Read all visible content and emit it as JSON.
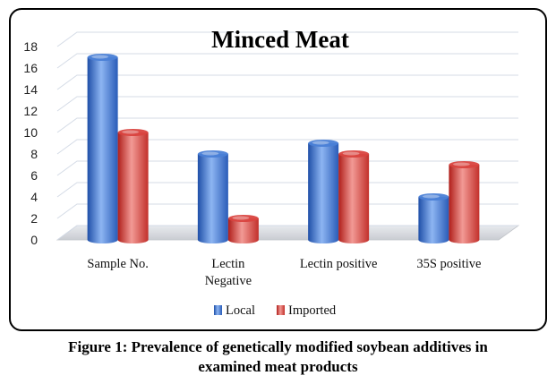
{
  "chart_data": {
    "type": "bar",
    "title": "Minced Meat",
    "categories": [
      [
        "Sample No."
      ],
      [
        "Lectin",
        "Negative"
      ],
      [
        "Lectin positive"
      ],
      [
        "35S positive"
      ]
    ],
    "series": [
      {
        "name": "Local",
        "values": [
          17,
          8,
          9,
          4
        ],
        "color": "#4a7fd6"
      },
      {
        "name": "Imported",
        "values": [
          10,
          2,
          8,
          7
        ],
        "color": "#d9433f"
      }
    ],
    "yticks": [
      "0",
      "2",
      "4",
      "6",
      "8",
      "10",
      "12",
      "14",
      "16",
      "18"
    ],
    "ylim": [
      0,
      18
    ],
    "grid": true,
    "legend": "bottom",
    "xlabel": "",
    "ylabel": ""
  },
  "caption": {
    "line1": "Figure 1: Prevalence of genetically modified soybean additives in",
    "line2": "examined meat products"
  }
}
